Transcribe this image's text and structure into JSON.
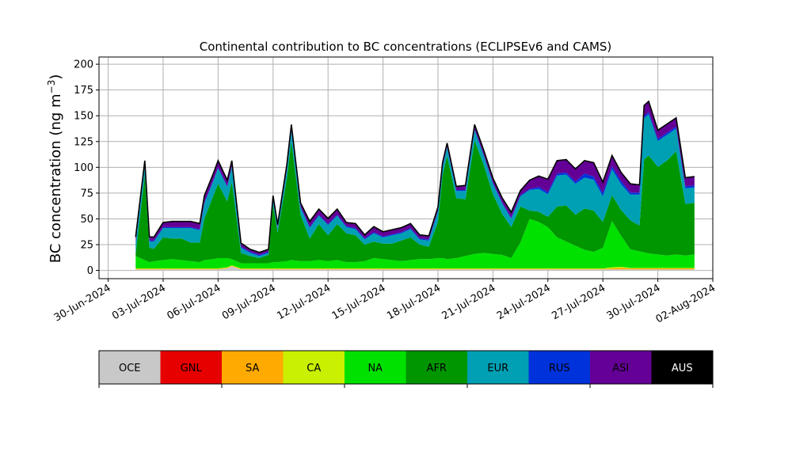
{
  "chart_data": {
    "type": "area",
    "title": "Continental contribution to BC concentrations (ECLIPSEv6 and CAMS)",
    "ylabel": "BC concentration (ng m",
    "ylabel_sup": "−3",
    "ylabel_close": ")",
    "xlim": [
      "2024-06-29T12:00",
      "2024-08-02T00:00"
    ],
    "ylim": [
      -8,
      207
    ],
    "yticks": [
      0,
      25,
      50,
      75,
      100,
      125,
      150,
      175,
      200
    ],
    "xticks": [
      "2024-06-30",
      "2024-07-03",
      "2024-07-06",
      "2024-07-09",
      "2024-07-12",
      "2024-07-15",
      "2024-07-18",
      "2024-07-21",
      "2024-07-24",
      "2024-07-27",
      "2024-07-30",
      "2024-08-02"
    ],
    "xtick_labels": [
      "30-Jun-2024",
      "03-Jul-2024",
      "06-Jul-2024",
      "09-Jul-2024",
      "12-Jul-2024",
      "15-Jul-2024",
      "18-Jul-2024",
      "21-Jul-2024",
      "24-Jul-2024",
      "27-Jul-2024",
      "30-Jul-2024",
      "02-Aug-2024"
    ],
    "grid": true,
    "legend": {
      "placement": "bottom colorbar",
      "entries": [
        {
          "name": "OCE",
          "color": "#c8c8c8",
          "text_color": "#000000"
        },
        {
          "name": "GNL",
          "color": "#e60000",
          "text_color": "#000000"
        },
        {
          "name": "SA",
          "color": "#ffaa00",
          "text_color": "#000000"
        },
        {
          "name": "CA",
          "color": "#c8f000",
          "text_color": "#000000"
        },
        {
          "name": "NA",
          "color": "#00e100",
          "text_color": "#000000"
        },
        {
          "name": "AFR",
          "color": "#009600",
          "text_color": "#000000"
        },
        {
          "name": "EUR",
          "color": "#00a0b4",
          "text_color": "#000000"
        },
        {
          "name": "RUS",
          "color": "#0032dc",
          "text_color": "#000000"
        },
        {
          "name": "ASI",
          "color": "#640096",
          "text_color": "#000000"
        },
        {
          "name": "AUS",
          "color": "#000000",
          "text_color": "#ffffff"
        }
      ]
    },
    "x": [
      "2024-07-01T12:00",
      "2024-07-02T00:00",
      "2024-07-02T06:00",
      "2024-07-02T12:00",
      "2024-07-03T00:00",
      "2024-07-03T12:00",
      "2024-07-04T00:00",
      "2024-07-04T12:00",
      "2024-07-05T00:00",
      "2024-07-05T06:00",
      "2024-07-05T18:00",
      "2024-07-06T00:00",
      "2024-07-06T12:00",
      "2024-07-06T18:00",
      "2024-07-07T06:00",
      "2024-07-07T18:00",
      "2024-07-08T06:00",
      "2024-07-08T18:00",
      "2024-07-09T00:00",
      "2024-07-09T06:00",
      "2024-07-09T18:00",
      "2024-07-10T00:00",
      "2024-07-10T12:00",
      "2024-07-11T00:00",
      "2024-07-11T12:00",
      "2024-07-12T00:00",
      "2024-07-12T12:00",
      "2024-07-13T00:00",
      "2024-07-13T12:00",
      "2024-07-14T00:00",
      "2024-07-14T12:00",
      "2024-07-15T00:00",
      "2024-07-15T12:00",
      "2024-07-16T00:00",
      "2024-07-16T12:00",
      "2024-07-17T00:00",
      "2024-07-17T12:00",
      "2024-07-18T00:00",
      "2024-07-18T06:00",
      "2024-07-18T12:00",
      "2024-07-19T00:00",
      "2024-07-19T12:00",
      "2024-07-20T00:00",
      "2024-07-20T12:00",
      "2024-07-21T00:00",
      "2024-07-21T12:00",
      "2024-07-22T00:00",
      "2024-07-22T12:00",
      "2024-07-23T00:00",
      "2024-07-23T12:00",
      "2024-07-24T00:00",
      "2024-07-24T12:00",
      "2024-07-25T00:00",
      "2024-07-25T12:00",
      "2024-07-26T00:00",
      "2024-07-26T12:00",
      "2024-07-27T00:00",
      "2024-07-27T12:00",
      "2024-07-28T00:00",
      "2024-07-28T12:00",
      "2024-07-29T00:00",
      "2024-07-29T06:00",
      "2024-07-29T12:00",
      "2024-07-30T00:00",
      "2024-07-30T12:00",
      "2024-07-31T00:00",
      "2024-07-31T12:00",
      "2024-08-01T00:00"
    ],
    "series": [
      {
        "name": "OCE",
        "values": [
          1,
          1,
          1,
          1,
          1,
          1,
          1,
          1,
          1,
          1,
          1,
          1,
          2,
          4,
          1,
          1,
          1,
          1,
          1,
          1,
          1,
          1,
          1,
          1,
          1,
          1,
          1,
          1,
          1,
          1,
          1,
          1,
          1,
          1,
          1,
          1,
          1,
          1,
          1,
          1,
          1,
          1,
          1,
          1,
          1,
          1,
          1,
          1,
          1,
          1,
          1,
          1,
          1,
          1,
          1,
          1,
          1,
          1,
          1,
          1,
          1,
          1,
          1,
          1,
          1,
          1,
          1,
          1
        ]
      },
      {
        "name": "GNL",
        "values": [
          0,
          0,
          0,
          0,
          0,
          0,
          0,
          0,
          0,
          0,
          0,
          0,
          0,
          0,
          0,
          0,
          0,
          0,
          0,
          0,
          0,
          0,
          0,
          0,
          0,
          0,
          0,
          0,
          0,
          0,
          0,
          0,
          0,
          0,
          0,
          0,
          0,
          0,
          0,
          0,
          0,
          0,
          0,
          0,
          0,
          0,
          0,
          0,
          0,
          0,
          0,
          0,
          0,
          0,
          0,
          0,
          0,
          0,
          0,
          0,
          0,
          0,
          0,
          0,
          0,
          0,
          0,
          0
        ]
      },
      {
        "name": "SA",
        "values": [
          0.5,
          0.5,
          0.5,
          0.5,
          0.5,
          0.5,
          0.5,
          0.5,
          0.5,
          0.5,
          0.5,
          0.5,
          0.5,
          0.5,
          0.5,
          0.5,
          0.5,
          0.5,
          0.5,
          0.5,
          0.5,
          0.5,
          0.5,
          0.5,
          0.5,
          0.5,
          0.5,
          0.5,
          0.5,
          0.5,
          0.5,
          0.5,
          0.5,
          0.5,
          0.5,
          0.5,
          0.5,
          0.5,
          0.5,
          0.5,
          0.5,
          0.5,
          0.5,
          0.5,
          0.5,
          0.5,
          0.5,
          0.5,
          0.5,
          0.5,
          0.5,
          0.5,
          0.5,
          0.5,
          0.5,
          0.5,
          0.5,
          1,
          1.5,
          1,
          1,
          1,
          1,
          1,
          1,
          1,
          1,
          1
        ]
      },
      {
        "name": "CA",
        "values": [
          0.5,
          0.5,
          0.5,
          0.5,
          0.5,
          0.5,
          0.5,
          0.5,
          0.5,
          0.5,
          0.5,
          0.5,
          0.5,
          0.5,
          0.5,
          0.5,
          0.5,
          0.5,
          0.5,
          0.5,
          0.5,
          0.5,
          0.5,
          0.5,
          0.5,
          0.5,
          0.5,
          0.5,
          0.5,
          0.5,
          0.5,
          0.5,
          0.5,
          0.5,
          0.5,
          0.5,
          0.5,
          0.5,
          0.5,
          0.5,
          0.5,
          0.5,
          0.5,
          0.5,
          0.5,
          0.5,
          0.5,
          0.5,
          0.5,
          0.5,
          0.5,
          0.5,
          0.5,
          0.5,
          0.5,
          0.5,
          0.5,
          1,
          1,
          0.5,
          0.5,
          0.5,
          0.5,
          0.5,
          0.5,
          0.5,
          0.5,
          0.5
        ]
      },
      {
        "name": "NA",
        "values": [
          12,
          8,
          6,
          7,
          8,
          9,
          8,
          7,
          6,
          8,
          9,
          10,
          9,
          6,
          5,
          5,
          5,
          5,
          6,
          6,
          7,
          8,
          7,
          7,
          8,
          7,
          8,
          6,
          6,
          7,
          10,
          9,
          8,
          7,
          8,
          9,
          9,
          10,
          10,
          9,
          10,
          12,
          14,
          15,
          14,
          13,
          10,
          25,
          48,
          45,
          40,
          30,
          26,
          22,
          18,
          16,
          20,
          45,
          30,
          18,
          16,
          15,
          14,
          13,
          12,
          13,
          12,
          13
        ]
      },
      {
        "name": "AFR",
        "values": [
          2,
          82,
          14,
          12,
          22,
          20,
          21,
          18,
          19,
          40,
          62,
          72,
          55,
          75,
          10,
          7,
          5,
          8,
          55,
          29,
          80,
          115,
          45,
          22,
          35,
          25,
          35,
          28,
          26,
          16,
          16,
          15,
          16,
          20,
          22,
          14,
          12,
          35,
          80,
          100,
          58,
          55,
          110,
          85,
          58,
          40,
          30,
          35,
          8,
          10,
          10,
          30,
          35,
          30,
          40,
          40,
          25,
          25,
          25,
          28,
          25,
          90,
          95,
          85,
          92,
          100,
          50,
          50
        ]
      },
      {
        "name": "EUR",
        "values": [
          10,
          10,
          6,
          7,
          9,
          10,
          10,
          14,
          12,
          15,
          14,
          15,
          14,
          14,
          5,
          3,
          2,
          2,
          5,
          4,
          8,
          10,
          7,
          10,
          8,
          10,
          8,
          6,
          6,
          5,
          8,
          6,
          8,
          7,
          8,
          5,
          6,
          10,
          8,
          8,
          7,
          8,
          10,
          9,
          10,
          10,
          8,
          10,
          20,
          22,
          22,
          30,
          30,
          30,
          30,
          30,
          25,
          25,
          25,
          25,
          30,
          40,
          40,
          25,
          25,
          22,
          15,
          15
        ]
      },
      {
        "name": "RUS",
        "values": [
          1,
          1,
          1,
          1,
          1,
          1,
          1,
          1,
          1,
          1,
          1,
          1,
          1,
          1,
          1,
          1,
          1,
          1,
          1,
          1,
          1,
          1,
          1,
          1,
          1,
          1,
          1,
          1,
          1,
          1,
          1,
          1,
          1,
          1,
          1,
          1,
          1,
          1,
          1,
          1,
          1,
          1,
          1,
          1,
          1,
          1,
          1,
          1,
          1,
          2,
          2,
          2,
          2,
          2,
          4,
          3,
          3,
          3,
          3,
          2,
          2,
          2,
          2,
          2,
          2,
          2,
          2,
          2
        ]
      },
      {
        "name": "ASI",
        "values": [
          5,
          3,
          3,
          3,
          4,
          5,
          5,
          5,
          5,
          6,
          6,
          6,
          5,
          5,
          3,
          2,
          2,
          2,
          3,
          2,
          4,
          5,
          3,
          5,
          5,
          5,
          5,
          3,
          4,
          3,
          5,
          4,
          4,
          4,
          4,
          3,
          3,
          3,
          3,
          3,
          3,
          4,
          4,
          4,
          4,
          4,
          5,
          4,
          8,
          10,
          12,
          12,
          12,
          12,
          12,
          13,
          10,
          10,
          8,
          8,
          7,
          10,
          10,
          8,
          8,
          8,
          8,
          8
        ]
      },
      {
        "name": "AUS",
        "values": [
          0.5,
          0.5,
          0.5,
          0.5,
          0.5,
          0.5,
          0.5,
          0.5,
          0.5,
          0.5,
          0.5,
          0.5,
          0.5,
          0.5,
          0.5,
          0.5,
          0.5,
          0.5,
          0.5,
          0.5,
          0.5,
          0.5,
          0.5,
          0.5,
          0.5,
          0.5,
          0.5,
          0.5,
          0.5,
          0.5,
          0.5,
          0.5,
          0.5,
          0.5,
          0.5,
          0.5,
          0.5,
          0.5,
          0.5,
          0.5,
          0.5,
          0.5,
          0.5,
          0.5,
          0.5,
          0.5,
          0.5,
          0.5,
          0.5,
          0.5,
          0.5,
          0.5,
          0.5,
          0.5,
          0.5,
          0.5,
          0.5,
          0.5,
          0.5,
          0.5,
          0.5,
          0.5,
          0.5,
          0.5,
          0.5,
          0.5,
          0.5,
          0.5
        ]
      }
    ]
  }
}
